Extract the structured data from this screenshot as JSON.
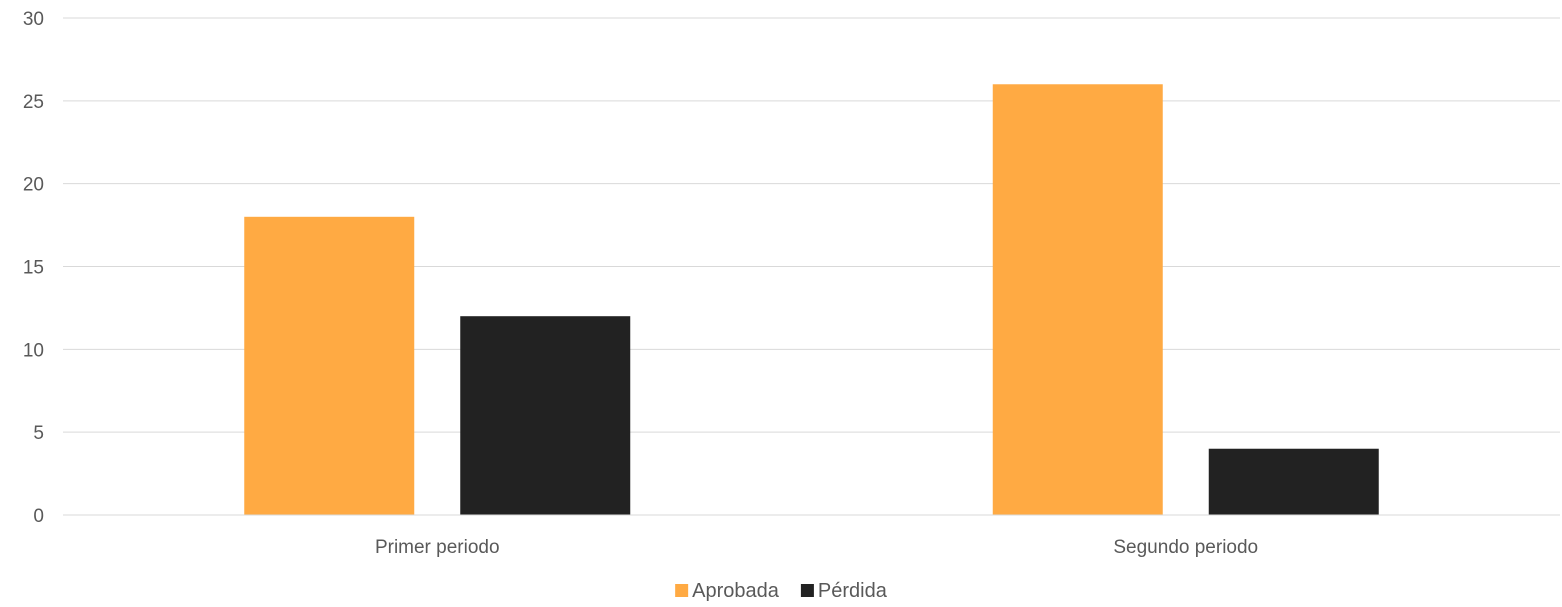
{
  "chart_data": {
    "type": "bar",
    "title": "",
    "xlabel": "",
    "ylabel": "",
    "categories": [
      "Primer periodo",
      "Segundo periodo"
    ],
    "series": [
      {
        "name": "Aprobada",
        "values": [
          18,
          26
        ],
        "color": "#FFAA43"
      },
      {
        "name": "Pérdida",
        "values": [
          12,
          4
        ],
        "color": "#222222"
      }
    ],
    "ylim": [
      0,
      30
    ],
    "yticks": [
      0,
      5,
      10,
      15,
      20,
      25,
      30
    ],
    "grid": true,
    "gridline_color": "#D9D9D9",
    "legend_position": "bottom"
  }
}
